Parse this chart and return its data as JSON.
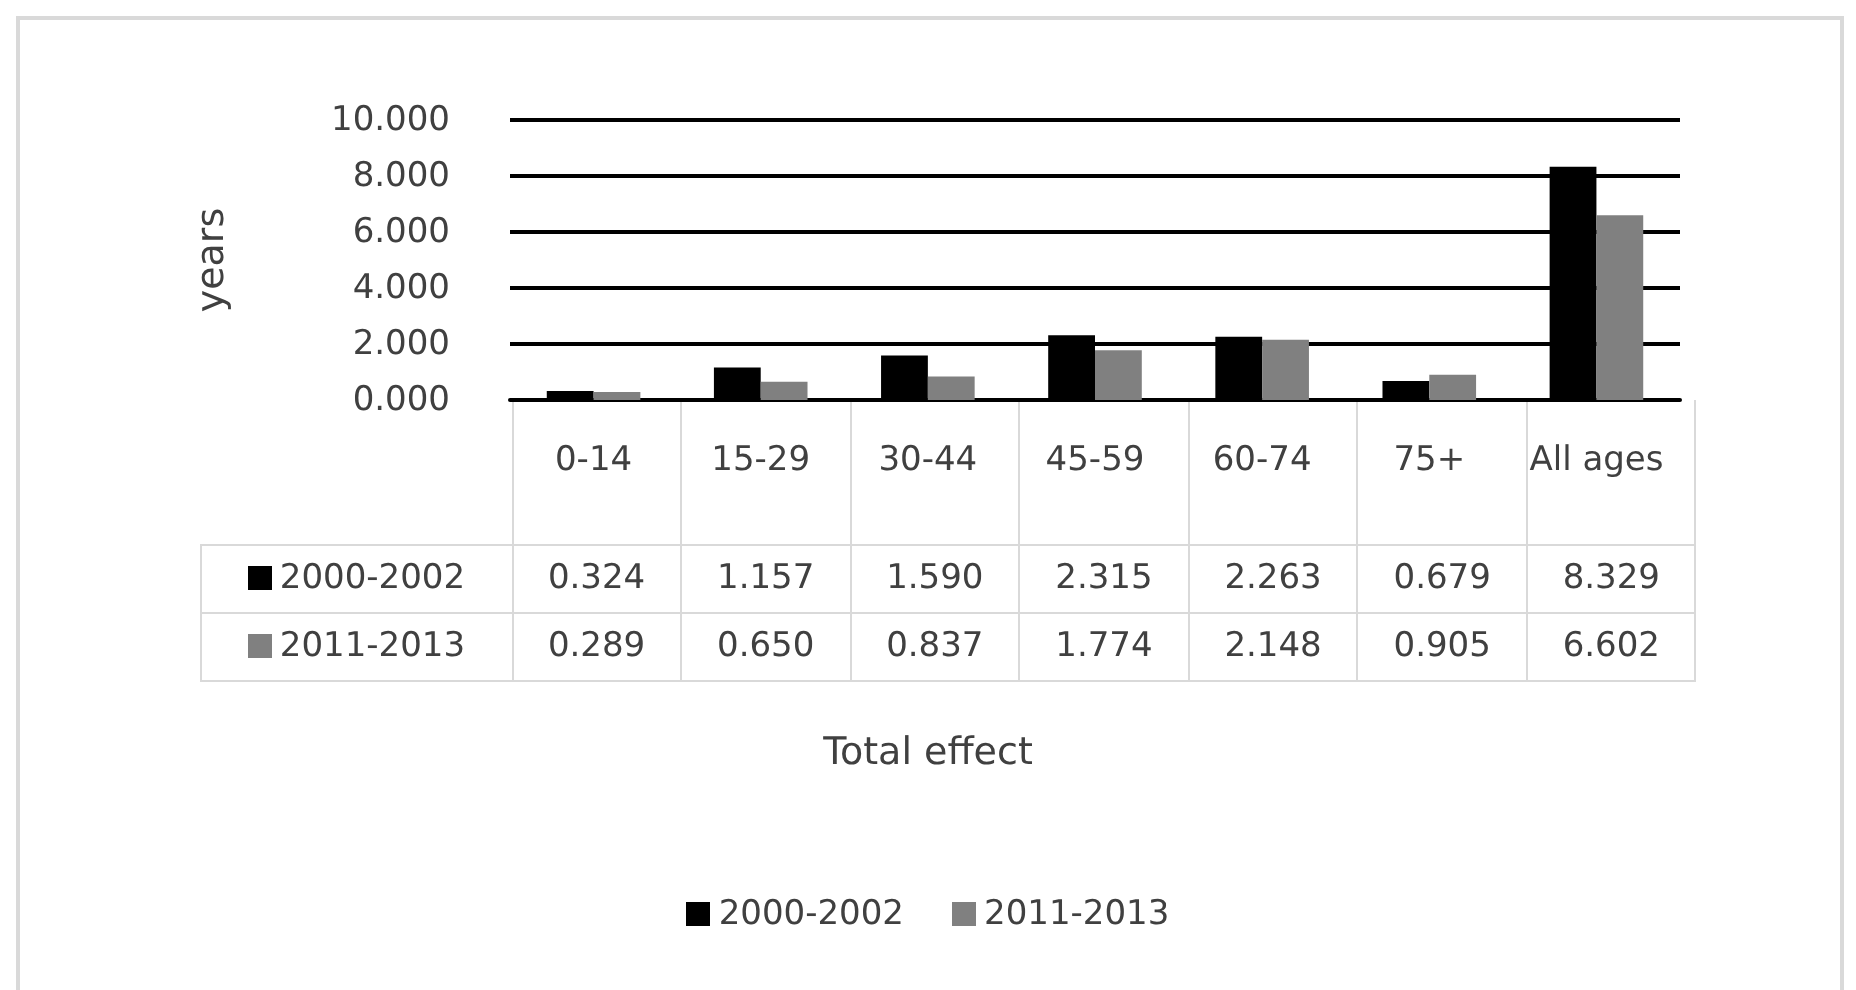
{
  "chart_data": {
    "type": "bar",
    "annotations": [
      "Total effect"
    ],
    "ylabel": "years",
    "categories": [
      "0-14",
      "15-29",
      "30-44",
      "45-59",
      "60-74",
      "75+",
      "All ages"
    ],
    "series": [
      {
        "name": "2000-2002",
        "color": "#000000",
        "values": [
          0.324,
          1.157,
          1.59,
          2.315,
          2.263,
          0.679,
          8.329
        ],
        "value_labels": [
          "0.324",
          "1.157",
          "1.590",
          "2.315",
          "2.263",
          "0.679",
          "8.329"
        ]
      },
      {
        "name": "2011-2013",
        "color": "#808080",
        "values": [
          0.289,
          0.65,
          0.837,
          1.774,
          2.148,
          0.905,
          6.602
        ],
        "value_labels": [
          "0.289",
          "0.650",
          "0.837",
          "1.774",
          "2.148",
          "0.905",
          "6.602"
        ]
      }
    ],
    "ylim": [
      0,
      10
    ],
    "yticks": [
      {
        "value": 0,
        "label": "0.000"
      },
      {
        "value": 2,
        "label": "2.000"
      },
      {
        "value": 4,
        "label": "4.000"
      },
      {
        "value": 6,
        "label": "6.000"
      },
      {
        "value": 8,
        "label": "8.000"
      },
      {
        "value": 10,
        "label": "10.000"
      }
    ],
    "grid": "y",
    "legend": "bottom"
  }
}
